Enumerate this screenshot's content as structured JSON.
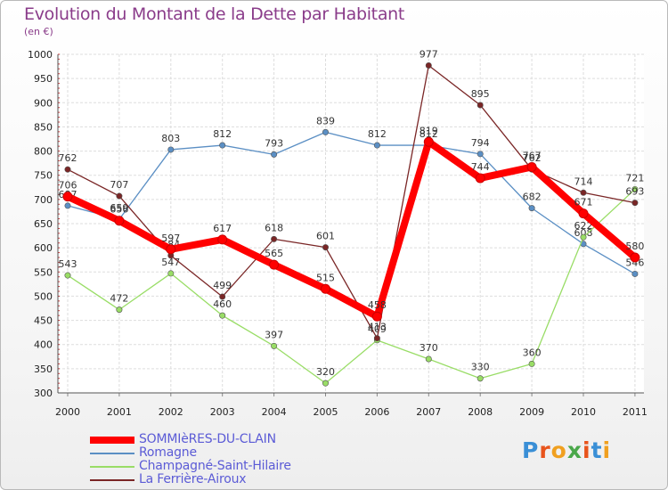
{
  "header": {
    "title": "Evolution du Montant de la Dette par Habitant",
    "unit": "(en €)"
  },
  "logo": {
    "text": "Proxiti",
    "colors": [
      "#3a8fd6",
      "#e8541c",
      "#f0a020",
      "#4aa84a",
      "#e8541c",
      "#3a8fd6",
      "#f0a020"
    ]
  },
  "chart_data": {
    "type": "line",
    "x": [
      "2000",
      "2001",
      "2002",
      "2003",
      "2004",
      "2005",
      "2006",
      "2007",
      "2008",
      "2009",
      "2010",
      "2011"
    ],
    "ylim": [
      300,
      1000
    ],
    "yticks": [
      300,
      350,
      400,
      450,
      500,
      550,
      600,
      650,
      700,
      750,
      800,
      850,
      900,
      950,
      1000
    ],
    "grid": true,
    "legend_position": "bottom-left",
    "series": [
      {
        "name": "Romagne",
        "color": "#5b8fc4",
        "values": [
          687,
          659,
          803,
          812,
          793,
          839,
          812,
          812,
          794,
          682,
          608,
          546
        ],
        "labels": [
          "687",
          "659",
          "803",
          "812",
          "793",
          "839",
          "812",
          "812",
          "794",
          "682",
          "608",
          "546"
        ]
      },
      {
        "name": "Champagné-Saint-Hilaire",
        "color": "#99dd66",
        "values": [
          543,
          472,
          547,
          460,
          397,
          320,
          409,
          370,
          330,
          360,
          622,
          721
        ],
        "labels": [
          "543",
          "472",
          "547",
          "460",
          "397",
          "320",
          "409",
          "370",
          "330",
          "360",
          "622",
          "721"
        ]
      },
      {
        "name": "La Ferrière-Airoux",
        "color": "#7a2626",
        "values": [
          762,
          707,
          584,
          499,
          618,
          601,
          413,
          977,
          895,
          762,
          714,
          693
        ],
        "labels": [
          "762",
          "707",
          "584",
          "499",
          "618",
          "601",
          "413",
          "977",
          "895",
          "762",
          "714",
          "693"
        ]
      },
      {
        "name": "SOMMIèRES-DU-CLAIN",
        "color": "#ff0000",
        "values": [
          706,
          656,
          597,
          617,
          565,
          515,
          458,
          819,
          744,
          767,
          671,
          580
        ],
        "labels": [
          "706",
          "656",
          "597",
          "617",
          "565",
          "515",
          "458",
          "819",
          "744",
          "767",
          "671",
          "580"
        ]
      }
    ],
    "legend_order": [
      "SOMMIèRES-DU-CLAIN",
      "Romagne",
      "Champagné-Saint-Hilaire",
      "La Ferrière-Airoux"
    ]
  }
}
